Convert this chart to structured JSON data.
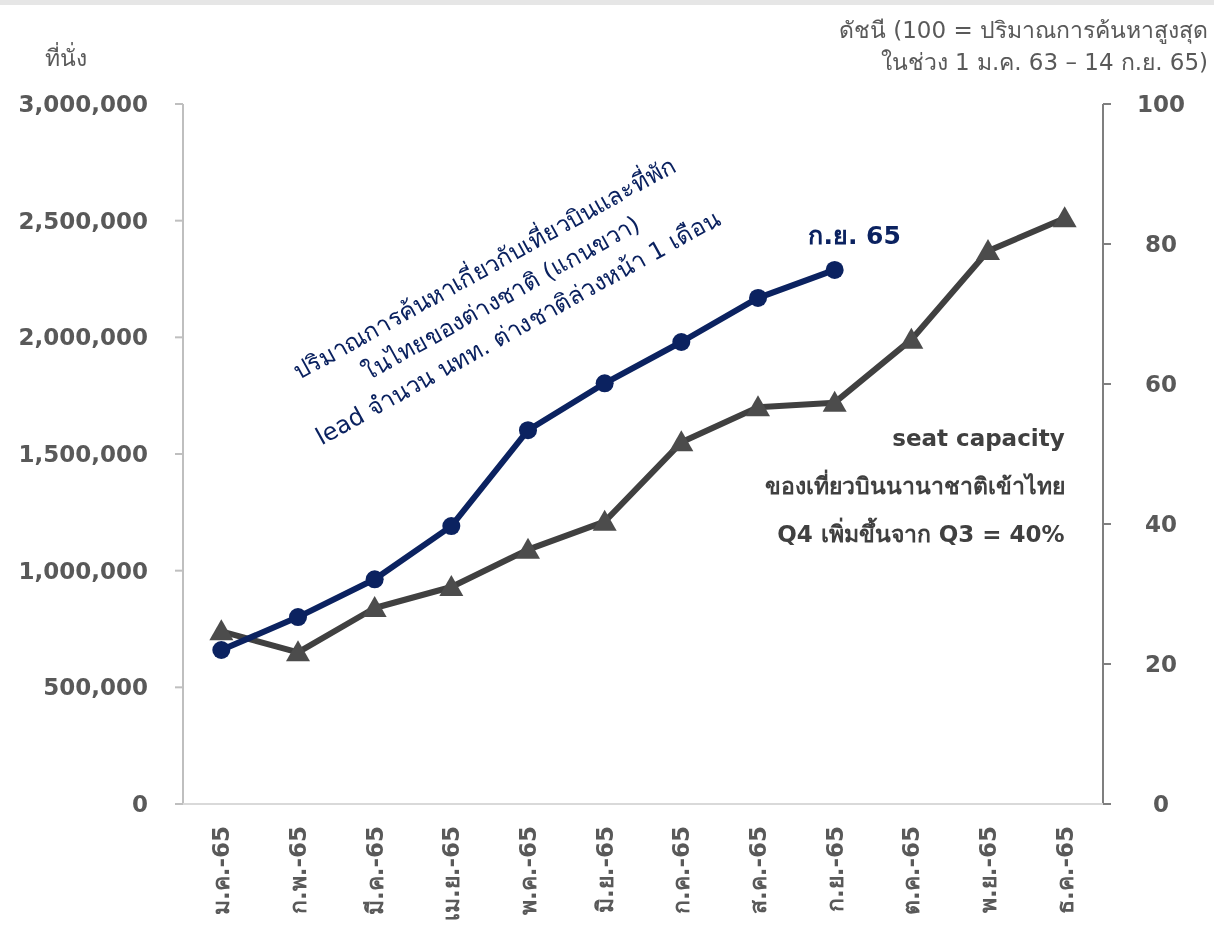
{
  "chart_data": {
    "type": "line",
    "ylabel": "ที่นั่ง",
    "y2label": "ดัชนี (100 = ปริมาณการค้นหาสูงสุด\nในช่วง 1 ม.ค. 63 – 14 ก.ย. 65)",
    "categories": [
      "ม.ค.-65",
      "ก.พ.-65",
      "มี.ค.-65",
      "เม.ย.-65",
      "พ.ค.-65",
      "มิ.ย.-65",
      "ก.ค.-65",
      "ส.ค.-65",
      "ก.ย.-65",
      "ต.ค.-65",
      "พ.ย.-65",
      "ธ.ค.-65"
    ],
    "series": [
      {
        "color": "#404040",
        "marker": "triangle",
        "values": [
          740000,
          650000,
          840000,
          930000,
          1090000,
          1210000,
          1550000,
          1700000,
          1720000,
          1990000,
          2370000,
          2510000
        ]
      },
      {
        "color": "#0b2260",
        "marker": "circle",
        "axis": "y2",
        "values": [
          22,
          26.7,
          32.1,
          39.7,
          53.4,
          60.1,
          66,
          72.3,
          76.3,
          null,
          null,
          null
        ]
      }
    ],
    "ylim": [
      0,
      3000000
    ],
    "yticks": [
      {
        "value": 0,
        "label": "0"
      },
      {
        "value": 500000,
        "label": "500,000"
      },
      {
        "value": 1000000,
        "label": "1,000,000"
      },
      {
        "value": 1500000,
        "label": "1,500,000"
      },
      {
        "value": 2000000,
        "label": "2,000,000"
      },
      {
        "value": 2500000,
        "label": "2,500,000"
      },
      {
        "value": 3000000,
        "label": "3,000,000"
      }
    ],
    "y2lim": [
      0,
      100
    ],
    "y2ticks": [
      0,
      20,
      40,
      60,
      80,
      100
    ],
    "annotations": [
      "ปริมาณการค้นหาเกี่ยวกับเที่ยวบินและที่พัก\nในไทยของต่างชาติ (แกนขวา)\nlead จำนวน นทท. ต่างชาติล่วงหน้า 1 เดือน",
      "ก.ย. 65",
      "seat capacity\nของเที่ยวบินนานาชาติเข้าไทย\nQ4 เพิ่มขึ้นจาก Q3 = 40%"
    ]
  }
}
